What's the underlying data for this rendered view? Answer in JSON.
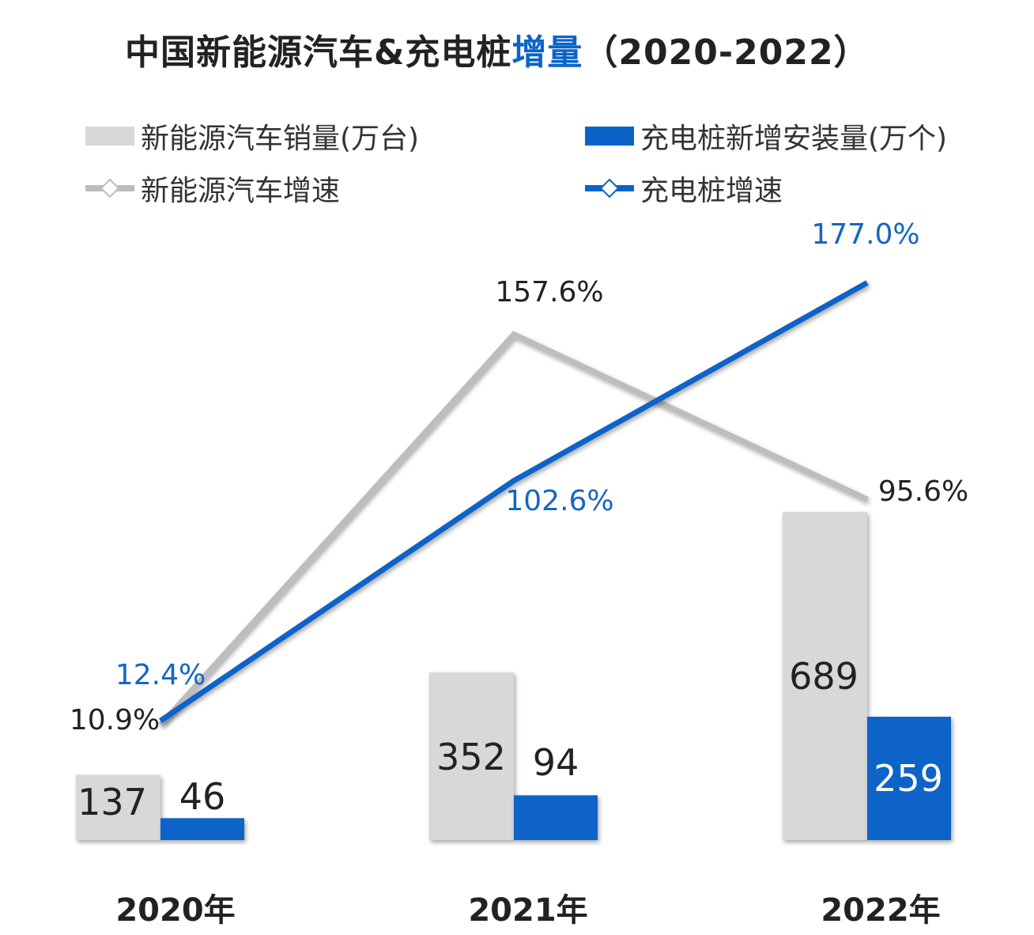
{
  "title": {
    "main": "中国新能源汽车&充电桩",
    "highlight": "增量",
    "range": "（2020-2022）"
  },
  "colors": {
    "ev_bar": "#d8d8da",
    "pile_bar": "#0a64c8",
    "ev_line": "#bdbdbf",
    "pile_line": "#0a64c8",
    "pile_label": "#1566c0",
    "text": "#222222"
  },
  "chart_data": {
    "type": "bar+line",
    "categories": [
      "2020年",
      "2021年",
      "2022年"
    ],
    "legend_placement": "top",
    "grid": false,
    "series": [
      {
        "name": "新能源汽车销量(万台)",
        "type": "bar",
        "values": [
          137,
          352,
          689
        ],
        "labels": [
          "137",
          "352",
          "689"
        ]
      },
      {
        "name": "充电桩新增安装量(万个)",
        "type": "bar",
        "values": [
          46,
          94,
          259
        ],
        "labels": [
          "46",
          "94",
          "259"
        ]
      },
      {
        "name": "新能源汽车增速",
        "type": "line",
        "values": [
          10.9,
          157.6,
          95.6
        ],
        "labels": [
          "10.9%",
          "157.6%",
          "95.6%"
        ]
      },
      {
        "name": "充电桩增速",
        "type": "line",
        "values": [
          12.4,
          102.6,
          177.0
        ],
        "labels": [
          "12.4%",
          "102.6%",
          "177.0%"
        ]
      }
    ]
  }
}
